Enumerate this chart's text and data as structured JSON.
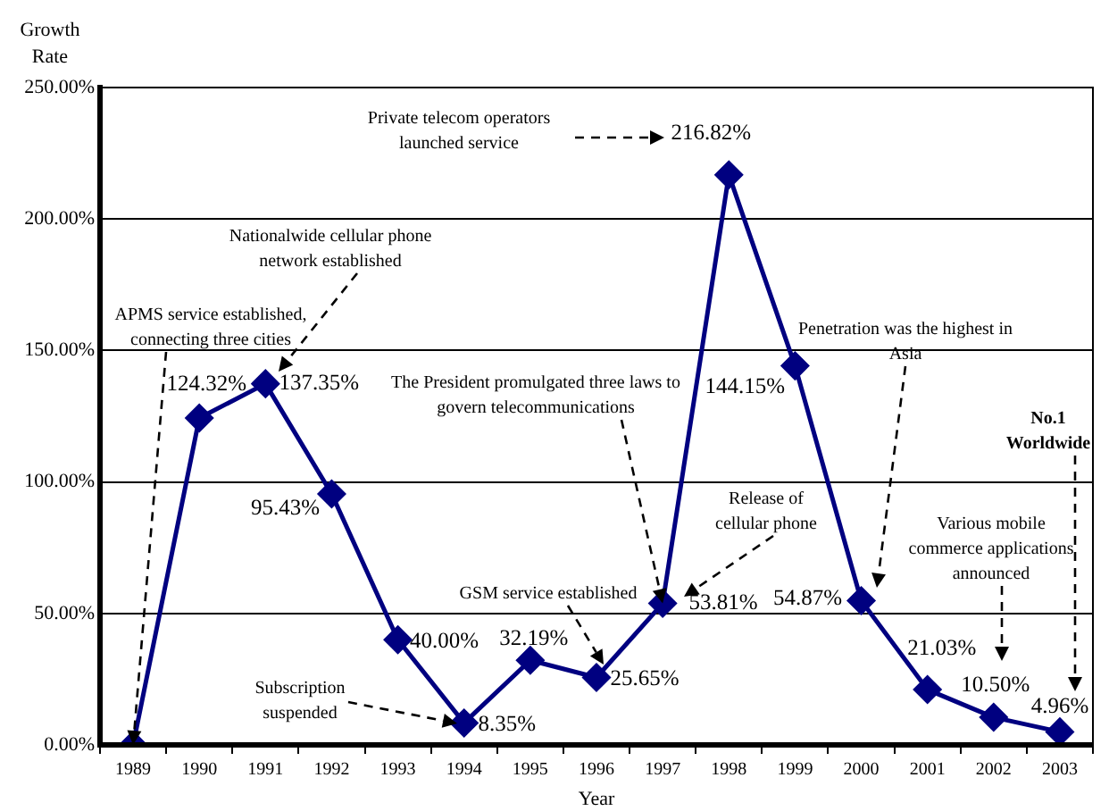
{
  "chart_data": {
    "type": "line",
    "ylabel": "Growth Rate",
    "xlabel": "Year",
    "categories": [
      "1989",
      "1990",
      "1991",
      "1992",
      "1993",
      "1994",
      "1995",
      "1996",
      "1997",
      "1998",
      "1999",
      "2000",
      "2001",
      "2002",
      "2003"
    ],
    "series": [
      {
        "color": "#000080",
        "values": [
          0,
          124.32,
          137.35,
          95.43,
          40.0,
          8.35,
          32.19,
          25.65,
          53.81,
          216.82,
          144.15,
          54.87,
          21.03,
          10.5,
          4.96
        ],
        "value_labels": [
          null,
          "124.32%",
          "137.35%",
          "95.43%",
          "40.00%",
          "8.35%",
          "32.19%",
          "25.65%",
          "53.81%",
          "216.82%",
          "144.15%",
          "54.87%",
          "21.03%",
          "10.50%",
          "4.96%"
        ]
      }
    ],
    "ylim": [
      0,
      250
    ],
    "yticks": [
      {
        "value": 0,
        "label": "0.00%"
      },
      {
        "value": 50,
        "label": "50.00%"
      },
      {
        "value": 100,
        "label": "100.00%"
      },
      {
        "value": 150,
        "label": "150.00%"
      },
      {
        "value": 200,
        "label": "200.00%"
      },
      {
        "value": 250,
        "label": "250.00%"
      }
    ],
    "grid": "y",
    "marker": "diamond",
    "line_style": "solid",
    "legend": false,
    "annotations": [
      {
        "text": "APMS service established, connecting three cities",
        "x": "1989",
        "y": 0
      },
      "Nationalwide cellular phone network established",
      "Private telecom operators launched service",
      {
        "text": "The President promulgated three laws to govern telecommunications",
        "x": "1997",
        "y": 53.81
      },
      "Release of cellular phone",
      "GSM service established",
      "Subscription suspended",
      "Penetration was the highest in Asia",
      "No.1 Worldwide",
      "Various mobile commerce applications announced"
    ]
  }
}
